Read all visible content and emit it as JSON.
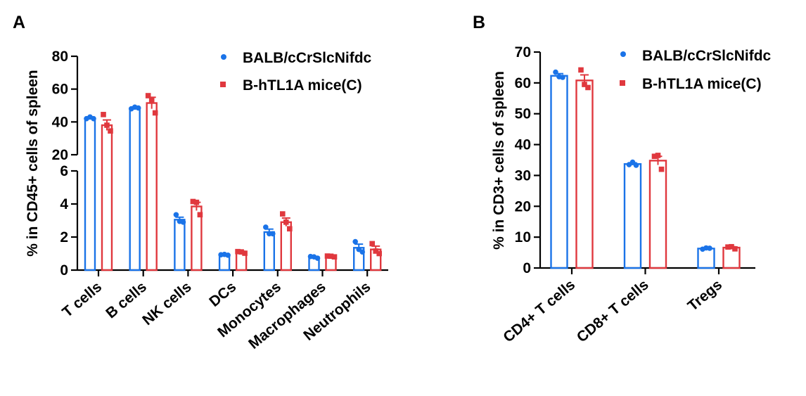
{
  "colors": {
    "balb": "#1a73e8",
    "htl1a": "#e0383e"
  },
  "legend": [
    "BALB/cCrSlcNifdc",
    "B-hTL1A mice(C)"
  ],
  "chart_data": [
    {
      "panel": "A",
      "type": "bar",
      "ylabel": "% in CD45+ cells of spleen",
      "y_break": {
        "lower_range": [
          0,
          6
        ],
        "upper_range": [
          20,
          80
        ]
      },
      "lower_ticks": [
        0,
        2,
        4,
        6
      ],
      "upper_ticks": [
        20,
        40,
        60,
        80
      ],
      "categories": [
        "T cells",
        "B cells",
        "NK cells",
        "DCs",
        "Monocytes",
        "Macrophages",
        "Neutrophils"
      ],
      "series": [
        {
          "name": "BALB/cCrSlcNifdc",
          "values": [
            42.3,
            48.5,
            3.05,
            0.92,
            2.3,
            0.78,
            1.35
          ],
          "errors": [
            0.8,
            0.6,
            0.15,
            0.04,
            0.18,
            0.05,
            0.22
          ],
          "points": [
            [
              42,
              43,
              42
            ],
            [
              48,
              49,
              48.5
            ],
            [
              3.35,
              2.95,
              2.9
            ],
            [
              0.93,
              0.95,
              0.9
            ],
            [
              2.6,
              2.2,
              2.2
            ],
            [
              0.82,
              0.8,
              0.72
            ],
            [
              1.72,
              1.25,
              1.1
            ]
          ]
        },
        {
          "name": "B-hTL1A mice(C)",
          "values": [
            38,
            51.5,
            3.85,
            1.08,
            2.9,
            0.82,
            1.25
          ],
          "errors": [
            3.2,
            3.5,
            0.25,
            0.06,
            0.25,
            0.05,
            0.2
          ],
          "points": [
            [
              44.5,
              38,
              34.5
            ],
            [
              56,
              53.5,
              45.5
            ],
            [
              4.15,
              4.1,
              3.35
            ],
            [
              1.12,
              1.1,
              1.02
            ],
            [
              3.4,
              2.9,
              2.5
            ],
            [
              0.85,
              0.84,
              0.8
            ],
            [
              1.6,
              1.15,
              1.0
            ]
          ]
        }
      ]
    },
    {
      "panel": "B",
      "type": "bar",
      "ylabel": "% in CD3+ cells of spleen",
      "ylim": [
        0,
        70
      ],
      "ticks": [
        0,
        10,
        20,
        30,
        40,
        50,
        60,
        70
      ],
      "categories": [
        "CD4+ T cells",
        "CD8+ T cells",
        "Tregs"
      ],
      "series": [
        {
          "name": "BALB/cCrSlcNifdc",
          "values": [
            62.3,
            33.7,
            6.3
          ],
          "errors": [
            0.7,
            0.4,
            0.2
          ],
          "points": [
            [
              63.5,
              62,
              61.8
            ],
            [
              33.5,
              34.3,
              33.3
            ],
            [
              6.1,
              6.5,
              6.4
            ]
          ]
        },
        {
          "name": "B-hTL1A mice(C)",
          "values": [
            60.8,
            34.8,
            6.6
          ],
          "errors": [
            1.8,
            1.4,
            0.3
          ],
          "points": [
            [
              64.2,
              59.5,
              58.5
            ],
            [
              36.2,
              36.5,
              32
            ],
            [
              6.8,
              6.9,
              6.2
            ]
          ]
        }
      ]
    }
  ]
}
